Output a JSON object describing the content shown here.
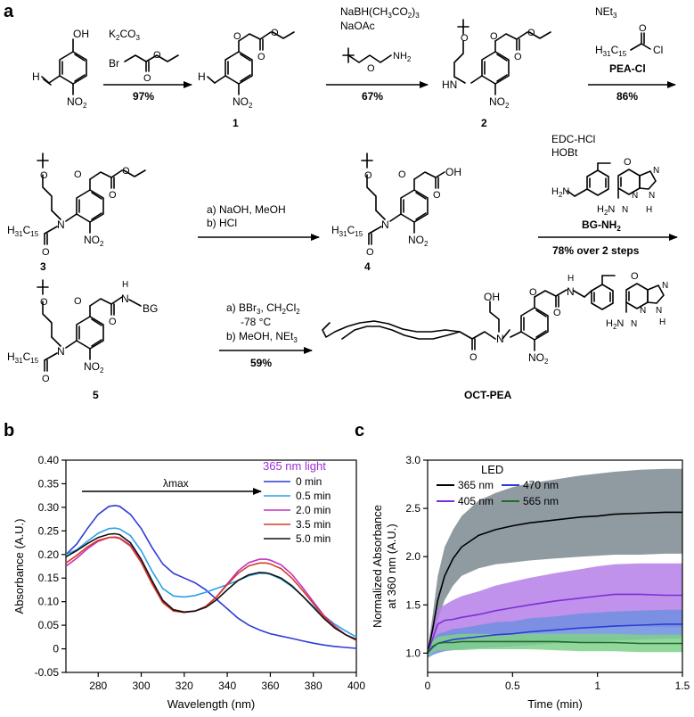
{
  "panel_labels": {
    "a": "a",
    "b": "b",
    "c": "c"
  },
  "scheme": {
    "step1": {
      "reagent1": "K2CO3",
      "reagent2_prefix": "Br",
      "yield": "97%"
    },
    "step2": {
      "reagent1": "NaBH(CH3CO2)3",
      "reagent2": "NaOAc",
      "amine_nh2": "NH2",
      "yield": "67%"
    },
    "step3": {
      "reagent1": "NEt3",
      "chain": "H31C15",
      "cl": "Cl",
      "name": "PEA-Cl",
      "yield": "86%"
    },
    "step4": {
      "line1": "a) NaOH, MeOH",
      "line2": "b) HCl"
    },
    "step5": {
      "reagent1": "EDC-HCl",
      "reagent2": "HOBt",
      "name": "BG-NH2",
      "yield": "78% over 2 steps"
    },
    "step6": {
      "line1": "a) BBr3, CH2Cl2",
      "line1b": "-78 °C",
      "line2": "b) MeOH, NEt3",
      "yield": "59%"
    },
    "compounds": {
      "c1": "1",
      "c2": "2",
      "c3": "3",
      "c4": "4",
      "c5": "5",
      "final": "OCT-PEA"
    },
    "atoms": {
      "oh": "OH",
      "h": "H",
      "no2": "NO2",
      "o": "O",
      "n": "N",
      "hn": "HN",
      "bg": "BG",
      "h2n": "H2N",
      "nh": "N\nH"
    }
  },
  "chart_data": [
    {
      "type": "line",
      "panel": "b",
      "title": "",
      "xlabel": "Wavelength (nm)",
      "ylabel": "Absorbance (A.U.)",
      "xlim": [
        265,
        400
      ],
      "ylim": [
        -0.05,
        0.4
      ],
      "xticks": [
        280,
        300,
        320,
        340,
        360,
        380,
        400
      ],
      "yticks": [
        -0.05,
        0,
        0.05,
        0.1,
        0.15,
        0.2,
        0.25,
        0.3,
        0.35,
        0.4
      ],
      "ytick_labels": [
        "-0.05",
        "0",
        "0.05",
        "0.10",
        "0.15",
        "0.20",
        "0.25",
        "0.30",
        "0.35",
        "0.40"
      ],
      "legend_title": "365 nm light",
      "legend_title_color": "#9b30d9",
      "annotation": "λmax",
      "legend_position": "top-right",
      "grid": false,
      "x": [
        265,
        270,
        275,
        280,
        285,
        288,
        290,
        295,
        300,
        305,
        310,
        315,
        320,
        325,
        330,
        335,
        340,
        345,
        350,
        355,
        358,
        360,
        365,
        370,
        375,
        380,
        385,
        390,
        395,
        400
      ],
      "series": [
        {
          "name": "0 min",
          "color": "#2f3bd6",
          "values": [
            0.2,
            0.222,
            0.255,
            0.285,
            0.302,
            0.304,
            0.302,
            0.285,
            0.255,
            0.215,
            0.18,
            0.16,
            0.15,
            0.14,
            0.125,
            0.105,
            0.085,
            0.065,
            0.05,
            0.04,
            0.035,
            0.032,
            0.027,
            0.022,
            0.017,
            0.012,
            0.008,
            0.005,
            0.003,
            0.001
          ]
        },
        {
          "name": "0.5 min",
          "color": "#2aa0e6",
          "values": [
            0.2,
            0.21,
            0.228,
            0.245,
            0.255,
            0.256,
            0.254,
            0.24,
            0.208,
            0.165,
            0.128,
            0.112,
            0.11,
            0.113,
            0.12,
            0.128,
            0.136,
            0.145,
            0.155,
            0.16,
            0.16,
            0.158,
            0.148,
            0.132,
            0.112,
            0.09,
            0.07,
            0.052,
            0.038,
            0.025
          ]
        },
        {
          "name": "2.0 min",
          "color": "#c030c0",
          "values": [
            0.175,
            0.192,
            0.212,
            0.228,
            0.236,
            0.237,
            0.235,
            0.22,
            0.185,
            0.14,
            0.1,
            0.082,
            0.078,
            0.08,
            0.09,
            0.11,
            0.138,
            0.165,
            0.183,
            0.19,
            0.19,
            0.188,
            0.178,
            0.158,
            0.13,
            0.1,
            0.07,
            0.048,
            0.03,
            0.018
          ]
        },
        {
          "name": "3.5 min",
          "color": "#d83a2a",
          "values": [
            0.182,
            0.198,
            0.216,
            0.23,
            0.236,
            0.236,
            0.234,
            0.218,
            0.183,
            0.138,
            0.098,
            0.08,
            0.077,
            0.08,
            0.09,
            0.11,
            0.136,
            0.16,
            0.176,
            0.182,
            0.182,
            0.18,
            0.17,
            0.15,
            0.124,
            0.096,
            0.068,
            0.046,
            0.03,
            0.018
          ]
        },
        {
          "name": "5.0 min",
          "color": "#111111",
          "values": [
            0.195,
            0.208,
            0.223,
            0.236,
            0.243,
            0.244,
            0.242,
            0.225,
            0.19,
            0.145,
            0.103,
            0.083,
            0.078,
            0.08,
            0.088,
            0.104,
            0.125,
            0.145,
            0.157,
            0.162,
            0.161,
            0.159,
            0.15,
            0.134,
            0.112,
            0.088,
            0.064,
            0.044,
            0.03,
            0.02
          ]
        }
      ]
    },
    {
      "type": "line",
      "panel": "c",
      "title": "",
      "xlabel": "Time (min)",
      "ylabel": "Normalized Absorbance",
      "ylabel2": "at 360 nm (A.U.)",
      "xlim": [
        0,
        1.5
      ],
      "ylim": [
        0.8,
        3.0
      ],
      "xticks": [
        0,
        0.5,
        1,
        1.5
      ],
      "xtick_labels": [
        "0",
        "0.5",
        "1",
        "1.5"
      ],
      "yticks": [
        1.0,
        1.5,
        2.0,
        2.5,
        3.0
      ],
      "ytick_labels": [
        "1.0",
        "1.5",
        "2.0",
        "2.5",
        "3.0"
      ],
      "legend_title": "LED",
      "legend_position": "top-left",
      "grid": false,
      "x": [
        0,
        0.03,
        0.06,
        0.1,
        0.15,
        0.2,
        0.3,
        0.4,
        0.5,
        0.6,
        0.75,
        0.9,
        1.0,
        1.1,
        1.25,
        1.4,
        1.5
      ],
      "series": [
        {
          "name": "365 nm",
          "color": "#000000",
          "band_color": "#7c8a90",
          "values": [
            1.0,
            1.25,
            1.55,
            1.8,
            1.98,
            2.1,
            2.22,
            2.28,
            2.32,
            2.35,
            2.38,
            2.41,
            2.42,
            2.44,
            2.45,
            2.46,
            2.46
          ],
          "lower": [
            0.97,
            1.12,
            1.35,
            1.55,
            1.7,
            1.8,
            1.88,
            1.92,
            1.94,
            1.96,
            1.98,
            2.0,
            2.01,
            2.02,
            2.02,
            2.03,
            2.03
          ],
          "upper": [
            1.03,
            1.4,
            1.8,
            2.1,
            2.28,
            2.42,
            2.58,
            2.66,
            2.72,
            2.76,
            2.8,
            2.84,
            2.86,
            2.88,
            2.9,
            2.91,
            2.91
          ]
        },
        {
          "name": "405 nm",
          "color": "#7b2fd6",
          "band_color": "#b57fe8",
          "values": [
            1.0,
            1.15,
            1.3,
            1.34,
            1.35,
            1.37,
            1.4,
            1.44,
            1.47,
            1.5,
            1.54,
            1.57,
            1.59,
            1.61,
            1.61,
            1.6,
            1.6
          ],
          "lower": [
            0.98,
            1.05,
            1.15,
            1.17,
            1.15,
            1.15,
            1.16,
            1.18,
            1.2,
            1.22,
            1.24,
            1.26,
            1.27,
            1.28,
            1.28,
            1.27,
            1.27
          ],
          "upper": [
            1.02,
            1.28,
            1.46,
            1.5,
            1.55,
            1.59,
            1.64,
            1.7,
            1.74,
            1.78,
            1.83,
            1.87,
            1.9,
            1.92,
            1.93,
            1.93,
            1.93
          ]
        },
        {
          "name": "470 nm",
          "color": "#2f3bd6",
          "band_color": "#6f8fe0",
          "values": [
            1.0,
            1.06,
            1.1,
            1.12,
            1.14,
            1.15,
            1.17,
            1.19,
            1.2,
            1.22,
            1.24,
            1.26,
            1.27,
            1.28,
            1.29,
            1.3,
            1.3
          ],
          "lower": [
            0.95,
            0.98,
            1.0,
            1.02,
            1.03,
            1.04,
            1.05,
            1.06,
            1.07,
            1.08,
            1.1,
            1.11,
            1.12,
            1.13,
            1.14,
            1.15,
            1.15
          ],
          "upper": [
            1.05,
            1.14,
            1.2,
            1.22,
            1.25,
            1.26,
            1.29,
            1.32,
            1.33,
            1.36,
            1.38,
            1.41,
            1.42,
            1.43,
            1.44,
            1.45,
            1.45
          ]
        },
        {
          "name": "565 nm",
          "color": "#1f6b2a",
          "band_color": "#7fd08a",
          "values": [
            1.0,
            1.07,
            1.1,
            1.11,
            1.11,
            1.12,
            1.12,
            1.12,
            1.12,
            1.12,
            1.12,
            1.11,
            1.11,
            1.11,
            1.1,
            1.1,
            1.1
          ],
          "lower": [
            0.97,
            1.01,
            1.03,
            1.03,
            1.03,
            1.03,
            1.04,
            1.04,
            1.04,
            1.04,
            1.03,
            1.02,
            1.02,
            1.02,
            1.01,
            1.01,
            1.01
          ],
          "upper": [
            1.03,
            1.13,
            1.17,
            1.18,
            1.19,
            1.2,
            1.2,
            1.2,
            1.2,
            1.2,
            1.2,
            1.2,
            1.2,
            1.2,
            1.19,
            1.19,
            1.19
          ]
        }
      ]
    }
  ]
}
